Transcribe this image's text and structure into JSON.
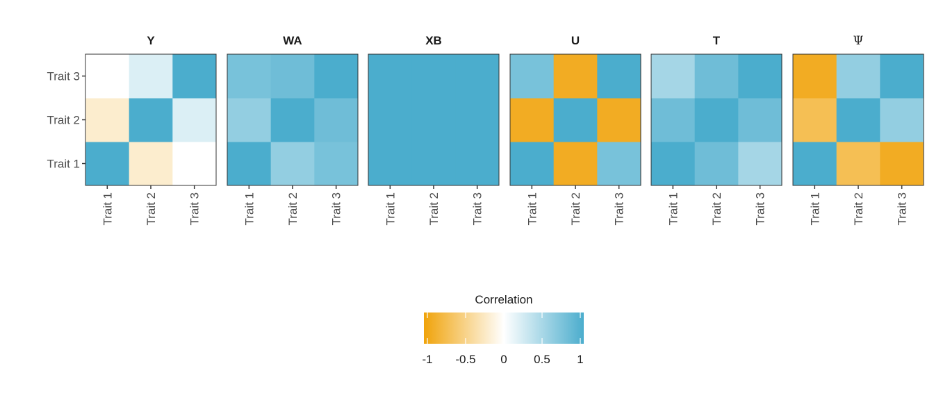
{
  "chart_data": {
    "type": "heatmap",
    "facets": [
      "Y",
      "WA",
      "XB",
      "U",
      "T",
      "Ψ"
    ],
    "x_labels": [
      "Trait 1",
      "Trait 2",
      "Trait 3"
    ],
    "y_labels": [
      "Trait 1",
      "Trait 2",
      "Trait 3"
    ],
    "matrices": [
      [
        [
          1.0,
          -0.2,
          0.0
        ],
        [
          -0.2,
          1.0,
          0.2
        ],
        [
          0.0,
          0.2,
          1.0
        ]
      ],
      [
        [
          1.0,
          0.6,
          0.75
        ],
        [
          0.6,
          1.0,
          0.8
        ],
        [
          0.75,
          0.8,
          1.0
        ]
      ],
      [
        [
          1.0,
          1.0,
          1.0
        ],
        [
          1.0,
          1.0,
          1.0
        ],
        [
          1.0,
          1.0,
          1.0
        ]
      ],
      [
        [
          1.0,
          -0.9,
          0.75
        ],
        [
          -0.9,
          1.0,
          -0.9
        ],
        [
          0.75,
          -0.9,
          1.0
        ]
      ],
      [
        [
          1.0,
          0.8,
          0.5
        ],
        [
          0.8,
          1.0,
          0.8
        ],
        [
          0.5,
          0.8,
          1.0
        ]
      ],
      [
        [
          1.0,
          -0.7,
          -0.9
        ],
        [
          -0.7,
          1.0,
          0.6
        ],
        [
          -0.9,
          0.6,
          1.0
        ]
      ]
    ],
    "legend": {
      "title": "Correlation",
      "ticks": [
        -1,
        -0.5,
        0,
        0.5,
        1
      ],
      "tick_labels": [
        "-1",
        "-0.5",
        "0",
        "0.5",
        "1"
      ],
      "range": [
        -1,
        1
      ]
    },
    "colors": {
      "negative": "#f0a30a",
      "zero": "#ffffff",
      "positive": "#4badcd"
    }
  }
}
